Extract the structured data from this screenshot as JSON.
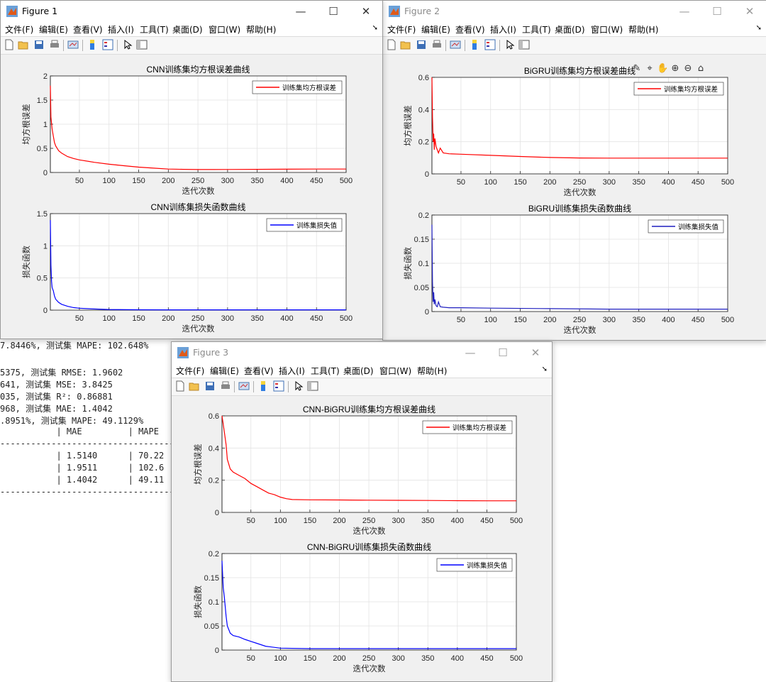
{
  "console": {
    "lines": [
      "7.8446%, 测试集 MAPE: 102.648%",
      "",
      "5375, 测试集 RMSE: 1.9602",
      "641, 测试集 MSE: 3.8425",
      "035, 测试集 R²: 0.86881",
      "968, 测试集 MAE: 1.4042",
      ".8951%, 测试集 MAPE: 49.1129%",
      "           | MAE         | MAPE",
      "------------------------------------",
      "           | 1.5140      | 70.22",
      "           | 1.9511      | 102.6",
      "           | 1.4042      | 49.11",
      "------------------------------------"
    ]
  },
  "menu_labels": [
    "文件(F)",
    "编辑(E)",
    "查看(V)",
    "插入(I)",
    "工具(T)",
    "桌面(D)",
    "窗口(W)",
    "帮助(H)"
  ],
  "menu_arrow": "➘",
  "window_buttons": {
    "minimize": "—",
    "maximize": "☐",
    "close": "✕"
  },
  "icons": [
    "new-file-icon",
    "open-folder-icon",
    "save-icon",
    "print-icon",
    "link-plot-icon",
    "colorbar-icon",
    "legend-icon",
    "pointer-icon",
    "property-inspector-icon"
  ],
  "axes_toolbar_icons": [
    "brush-icon",
    "data-tip-icon",
    "pan-icon",
    "zoom-in-icon",
    "zoom-out-icon",
    "home-icon"
  ],
  "figures": [
    {
      "title": "Figure 1",
      "active": true,
      "charts": [
        {
          "type": "line",
          "title": "CNN训练集均方根误差曲线",
          "xlabel": "迭代次数",
          "ylabel": "均方根误差",
          "legend": "训练集均方根误差",
          "legend_position": "top-right",
          "color": "#ff0000",
          "grid": true,
          "xlim": [
            1,
            500
          ],
          "ylim": [
            0,
            2
          ],
          "xticks": [
            "50",
            "100",
            "150",
            "200",
            "250",
            "300",
            "350",
            "400",
            "450",
            "500"
          ],
          "yticks": [
            "0",
            "0.5",
            "1",
            "1.5",
            "2"
          ],
          "x": [
            1,
            2,
            4,
            6,
            8,
            10,
            15,
            20,
            30,
            40,
            50,
            75,
            100,
            125,
            150,
            175,
            200,
            225,
            250,
            275,
            300,
            350,
            400,
            450,
            500
          ],
          "y": [
            1.8,
            1.15,
            0.9,
            0.75,
            0.62,
            0.55,
            0.45,
            0.4,
            0.33,
            0.29,
            0.26,
            0.21,
            0.17,
            0.14,
            0.11,
            0.09,
            0.07,
            0.065,
            0.06,
            0.06,
            0.062,
            0.065,
            0.068,
            0.07,
            0.07
          ]
        },
        {
          "type": "line",
          "title": "CNN训练集损失函数曲线",
          "xlabel": "迭代次数",
          "ylabel": "损失函数",
          "legend": "训练集损失值",
          "legend_position": "top-right",
          "color": "#0000ff",
          "grid": true,
          "xlim": [
            1,
            500
          ],
          "ylim": [
            0,
            1.5
          ],
          "xticks": [
            "50",
            "100",
            "150",
            "200",
            "250",
            "300",
            "350",
            "400",
            "450",
            "500"
          ],
          "yticks": [
            "0",
            "0.5",
            "1",
            "1.5"
          ],
          "x": [
            1,
            2,
            3,
            4,
            6,
            8,
            10,
            15,
            20,
            30,
            40,
            50,
            75,
            100,
            150,
            200,
            300,
            400,
            500
          ],
          "y": [
            1.4,
            0.7,
            0.45,
            0.35,
            0.3,
            0.22,
            0.17,
            0.12,
            0.09,
            0.06,
            0.04,
            0.03,
            0.018,
            0.01,
            0.006,
            0.004,
            0.004,
            0.004,
            0.004
          ]
        }
      ]
    },
    {
      "title": "Figure 2",
      "active": false,
      "charts": [
        {
          "type": "line",
          "title": "BiGRU训练集均方根误差曲线",
          "xlabel": "迭代次数",
          "ylabel": "均方根误差",
          "legend": "训练集均方根误差",
          "legend_position": "top-right",
          "color": "#ff0000",
          "grid": true,
          "xlim": [
            1,
            500
          ],
          "ylim": [
            0,
            0.6
          ],
          "xticks": [
            "50",
            "100",
            "150",
            "200",
            "250",
            "300",
            "350",
            "400",
            "450",
            "500"
          ],
          "yticks": [
            "0",
            "0.2",
            "0.4",
            "0.6"
          ],
          "x": [
            1,
            2,
            3,
            4,
            5,
            6,
            8,
            10,
            12,
            15,
            20,
            30,
            50,
            100,
            150,
            200,
            250,
            300,
            400,
            500
          ],
          "y": [
            0.6,
            0.35,
            0.2,
            0.25,
            0.15,
            0.22,
            0.17,
            0.15,
            0.13,
            0.16,
            0.13,
            0.125,
            0.122,
            0.115,
            0.108,
            0.102,
            0.099,
            0.098,
            0.098,
            0.098
          ]
        },
        {
          "type": "line",
          "title": "BiGRU训练集损失函数曲线",
          "xlabel": "迭代次数",
          "ylabel": "损失函数",
          "legend": "训练集损失值",
          "legend_position": "top-right",
          "color": "#1f1fbf",
          "grid": true,
          "xlim": [
            1,
            500
          ],
          "ylim": [
            0,
            0.2
          ],
          "xticks": [
            "50",
            "100",
            "150",
            "200",
            "250",
            "300",
            "350",
            "400",
            "450",
            "500"
          ],
          "yticks": [
            "0",
            "0.05",
            "0.1",
            "0.15",
            "0.2"
          ],
          "x": [
            1,
            2,
            3,
            4,
            5,
            6,
            8,
            10,
            12,
            15,
            20,
            30,
            50,
            100,
            200,
            300,
            400,
            500
          ],
          "y": [
            0.18,
            0.06,
            0.02,
            0.04,
            0.015,
            0.025,
            0.012,
            0.01,
            0.02,
            0.01,
            0.009,
            0.008,
            0.008,
            0.007,
            0.006,
            0.005,
            0.005,
            0.005
          ]
        }
      ]
    },
    {
      "title": "Figure 3",
      "active": false,
      "charts": [
        {
          "type": "line",
          "title": "CNN-BiGRU训练集均方根误差曲线",
          "xlabel": "迭代次数",
          "ylabel": "均方根误差",
          "legend": "训练集均方根误差",
          "legend_position": "top-right",
          "color": "#ff0000",
          "grid": true,
          "xlim": [
            1,
            500
          ],
          "ylim": [
            0,
            0.6
          ],
          "xticks": [
            "50",
            "100",
            "150",
            "200",
            "250",
            "300",
            "350",
            "400",
            "450",
            "500"
          ],
          "yticks": [
            "0",
            "0.2",
            "0.4",
            "0.6"
          ],
          "x": [
            1,
            3,
            5,
            8,
            10,
            15,
            20,
            30,
            40,
            50,
            60,
            70,
            80,
            90,
            100,
            110,
            120,
            150,
            200,
            250,
            300,
            350,
            400,
            450,
            500
          ],
          "y": [
            0.6,
            0.55,
            0.5,
            0.42,
            0.33,
            0.27,
            0.25,
            0.23,
            0.21,
            0.18,
            0.16,
            0.14,
            0.12,
            0.11,
            0.095,
            0.085,
            0.08,
            0.078,
            0.077,
            0.076,
            0.075,
            0.074,
            0.073,
            0.072,
            0.072
          ]
        },
        {
          "type": "line",
          "title": "CNN-BiGRU训练集损失函数曲线",
          "xlabel": "迭代次数",
          "ylabel": "损失函数",
          "legend": "训练集损失值",
          "legend_position": "top-right",
          "color": "#0000ff",
          "grid": true,
          "xlim": [
            1,
            500
          ],
          "ylim": [
            0,
            0.2
          ],
          "xticks": [
            "50",
            "100",
            "150",
            "200",
            "250",
            "300",
            "350",
            "400",
            "450",
            "500"
          ],
          "yticks": [
            "0",
            "0.05",
            "0.1",
            "0.15",
            "0.2"
          ],
          "x": [
            1,
            3,
            5,
            8,
            10,
            15,
            20,
            30,
            40,
            50,
            60,
            75,
            100,
            150,
            200,
            300,
            400,
            500
          ],
          "y": [
            0.185,
            0.13,
            0.11,
            0.07,
            0.05,
            0.035,
            0.03,
            0.027,
            0.022,
            0.018,
            0.014,
            0.008,
            0.004,
            0.003,
            0.003,
            0.003,
            0.003,
            0.003
          ]
        }
      ]
    }
  ]
}
